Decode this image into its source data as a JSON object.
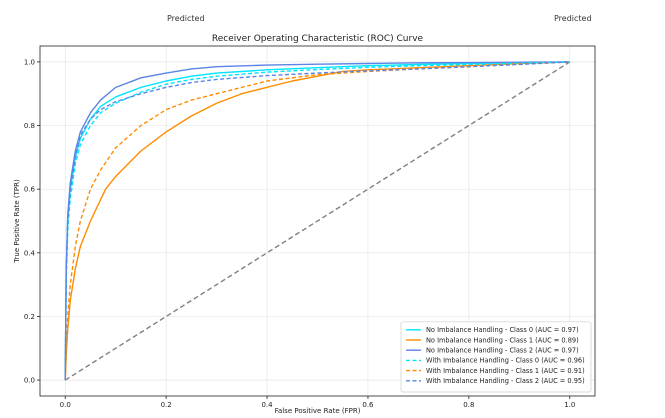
{
  "header_fragments": {
    "left": "Predicted",
    "right": "Predicted"
  },
  "chart_data": {
    "type": "line",
    "title": "Receiver Operating Characteristic (ROC) Curve",
    "xlabel": "False Positive Rate (FPR)",
    "ylabel": "True Positive Rate (TPR)",
    "xlim": [
      -0.05,
      1.05
    ],
    "ylim": [
      -0.05,
      1.05
    ],
    "xticks": [
      0.0,
      0.2,
      0.4,
      0.6,
      0.8,
      1.0
    ],
    "yticks": [
      0.0,
      0.2,
      0.4,
      0.6,
      0.8,
      1.0
    ],
    "xtick_labels": [
      "0.0",
      "0.2",
      "0.4",
      "0.6",
      "0.8",
      "1.0"
    ],
    "ytick_labels": [
      "0.0",
      "0.2",
      "0.4",
      "0.6",
      "0.8",
      "1.0"
    ],
    "grid": true,
    "legend_position": "lower-right",
    "diagonal": {
      "x": [
        0,
        1
      ],
      "y": [
        0,
        1
      ],
      "color": "#808080",
      "style": "dashed"
    },
    "series": [
      {
        "name": "No Imbalance Handling - Class 0 (AUC = 0.97)",
        "color": "#00e5ff",
        "style": "solid",
        "x": [
          0,
          0.002,
          0.005,
          0.01,
          0.02,
          0.03,
          0.05,
          0.07,
          0.1,
          0.15,
          0.2,
          0.25,
          0.3,
          0.4,
          0.5,
          0.6,
          0.7,
          0.8,
          0.9,
          1.0
        ],
        "y": [
          0,
          0.35,
          0.5,
          0.6,
          0.7,
          0.76,
          0.82,
          0.86,
          0.89,
          0.92,
          0.94,
          0.955,
          0.965,
          0.975,
          0.982,
          0.988,
          0.992,
          0.995,
          0.998,
          1.0
        ]
      },
      {
        "name": "No Imbalance Handling - Class 1 (AUC = 0.89)",
        "color": "#ff8c00",
        "style": "solid",
        "x": [
          0,
          0.002,
          0.005,
          0.01,
          0.02,
          0.03,
          0.05,
          0.08,
          0.1,
          0.15,
          0.2,
          0.25,
          0.3,
          0.35,
          0.4,
          0.45,
          0.5,
          0.55,
          0.6,
          0.7,
          0.8,
          0.9,
          1.0
        ],
        "y": [
          0,
          0.08,
          0.16,
          0.25,
          0.35,
          0.42,
          0.5,
          0.6,
          0.64,
          0.72,
          0.78,
          0.83,
          0.87,
          0.9,
          0.92,
          0.94,
          0.955,
          0.97,
          0.975,
          0.982,
          0.988,
          0.995,
          1.0
        ]
      },
      {
        "name": "No Imbalance Handling - Class 2 (AUC = 0.97)",
        "color": "#5b84e6",
        "style": "solid",
        "x": [
          0,
          0.002,
          0.005,
          0.01,
          0.02,
          0.03,
          0.05,
          0.07,
          0.1,
          0.15,
          0.2,
          0.25,
          0.3,
          0.4,
          0.5,
          0.6,
          0.7,
          0.8,
          0.9,
          1.0
        ],
        "y": [
          0,
          0.35,
          0.52,
          0.62,
          0.72,
          0.78,
          0.84,
          0.88,
          0.92,
          0.95,
          0.965,
          0.978,
          0.985,
          0.99,
          0.993,
          0.995,
          0.997,
          0.998,
          0.999,
          1.0
        ]
      },
      {
        "name": "With Imbalance Handling - Class 0 (AUC = 0.96)",
        "color": "#00e5ff",
        "style": "dashed",
        "x": [
          0,
          0.002,
          0.005,
          0.01,
          0.02,
          0.03,
          0.05,
          0.07,
          0.1,
          0.15,
          0.2,
          0.25,
          0.3,
          0.4,
          0.5,
          0.6,
          0.7,
          0.8,
          0.9,
          1.0
        ],
        "y": [
          0,
          0.32,
          0.47,
          0.57,
          0.68,
          0.74,
          0.8,
          0.84,
          0.87,
          0.905,
          0.93,
          0.945,
          0.955,
          0.968,
          0.976,
          0.983,
          0.988,
          0.992,
          0.996,
          1.0
        ]
      },
      {
        "name": "With Imbalance Handling - Class 1 (AUC = 0.91)",
        "color": "#ff8c00",
        "style": "dashed",
        "x": [
          0,
          0.002,
          0.005,
          0.01,
          0.02,
          0.03,
          0.05,
          0.07,
          0.1,
          0.15,
          0.2,
          0.25,
          0.3,
          0.35,
          0.4,
          0.5,
          0.6,
          0.7,
          0.8,
          0.9,
          1.0
        ],
        "y": [
          0,
          0.1,
          0.2,
          0.3,
          0.42,
          0.5,
          0.6,
          0.66,
          0.73,
          0.8,
          0.85,
          0.88,
          0.9,
          0.92,
          0.94,
          0.96,
          0.97,
          0.978,
          0.985,
          0.993,
          1.0
        ]
      },
      {
        "name": "With Imbalance Handling - Class 2 (AUC = 0.95)",
        "color": "#5b84e6",
        "style": "dashed",
        "x": [
          0,
          0.002,
          0.005,
          0.01,
          0.02,
          0.03,
          0.05,
          0.07,
          0.1,
          0.15,
          0.2,
          0.25,
          0.3,
          0.4,
          0.5,
          0.6,
          0.7,
          0.8,
          0.9,
          1.0
        ],
        "y": [
          0,
          0.33,
          0.5,
          0.6,
          0.7,
          0.77,
          0.82,
          0.85,
          0.875,
          0.9,
          0.92,
          0.935,
          0.945,
          0.957,
          0.965,
          0.972,
          0.978,
          0.985,
          0.992,
          1.0
        ]
      }
    ]
  }
}
